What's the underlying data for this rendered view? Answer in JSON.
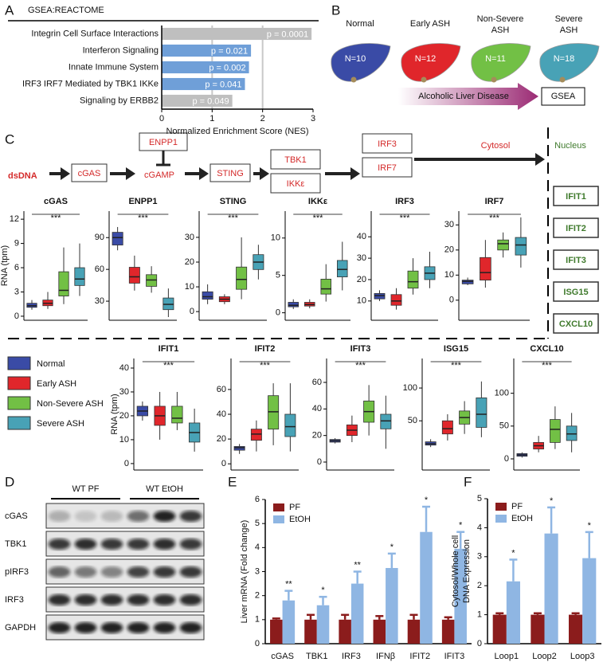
{
  "panel_labels": [
    "A",
    "B",
    "C",
    "D",
    "E",
    "F"
  ],
  "diagram_b": {
    "groups": [
      {
        "label": [
          "Normal"
        ],
        "n": "N=10",
        "color": "#3a4ba6"
      },
      {
        "label": [
          "Early ASH"
        ],
        "n": "N=12",
        "color": "#e0262b"
      },
      {
        "label": [
          "Non-Severe",
          "ASH"
        ],
        "n": "N=11",
        "color": "#72c045"
      },
      {
        "label": [
          "Severe",
          "ASH"
        ],
        "n": "N=18",
        "color": "#48a2b6"
      }
    ],
    "arrow": "Alcoholic Liver Disease",
    "box": "GSEA"
  },
  "pathway": {
    "source": "dsDNA",
    "nodes": [
      "cGAS",
      "cGAMP",
      "STING",
      "TBK1",
      "IKKε",
      "IRF3",
      "IRF7"
    ],
    "inhibitor": "ENPP1",
    "cytosol": "Cytosol",
    "nucleus": "Nucleus",
    "targets": [
      "IFIT1",
      "IFIT2",
      "IFIT3",
      "ISG15",
      "CXCL10"
    ]
  },
  "box_legend": {
    "names": [
      "Normal",
      "Early ASH",
      "Non-Severe ASH",
      "Severe ASH"
    ],
    "colors": [
      "#3a4ba6",
      "#e0262b",
      "#72c045",
      "#48a2b6"
    ]
  },
  "blot": {
    "groups": [
      "WT PF",
      "WT EtOH"
    ],
    "rows": [
      "cGAS",
      "TBK1",
      "pIRF3",
      "IRF3",
      "GAPDH"
    ]
  },
  "chart_data": [
    {
      "type": "hbar",
      "title": "GSEA:REACTOME",
      "categories": [
        "Integrin Cell Surface Interactions",
        "Interferon Signaling",
        "Innate Immune System",
        "IRF3 IRF7 Mediated by TBK1 IKKe",
        "Signaling by ERBB2"
      ],
      "values": [
        2.97,
        1.77,
        1.73,
        1.65,
        1.4
      ],
      "colors": [
        "#bfbfbf",
        "#6f9fd8",
        "#6f9fd8",
        "#6f9fd8",
        "#bfbfbf"
      ],
      "annotations": [
        "p = 0.0001",
        "p = 0.021",
        "p = 0.002",
        "p = 0.041",
        "p = 0.049"
      ],
      "xlim": [
        0,
        3
      ],
      "xticks": [
        0,
        1,
        2,
        3
      ],
      "xlabel": "Normalized Enrichment Score (NES)",
      "grid": true
    },
    {
      "type": "box",
      "title": "cGAS",
      "ylabel": "RNA (tpm)",
      "annotation": "***",
      "ylim": [
        -0.5,
        13
      ],
      "yticks": [
        0,
        3,
        6,
        9,
        12
      ],
      "boxes": [
        {
          "min": 0.8,
          "q1": 1.1,
          "median": 1.3,
          "q3": 1.6,
          "max": 2
        },
        {
          "min": 0.9,
          "q1": 1.3,
          "median": 1.6,
          "q3": 2.0,
          "max": 3
        },
        {
          "min": 1.5,
          "q1": 2.5,
          "median": 3.2,
          "q3": 5.5,
          "max": 8.5
        },
        {
          "min": 2.5,
          "q1": 3.8,
          "median": 4.6,
          "q3": 6,
          "max": 9
        }
      ]
    },
    {
      "type": "box",
      "title": "ENPP1",
      "annotation": "***",
      "ylim": [
        12,
        115
      ],
      "yticks": [
        30,
        60,
        90
      ],
      "boxes": [
        {
          "min": 78,
          "q1": 83,
          "median": 90,
          "q3": 95,
          "max": 100
        },
        {
          "min": 40,
          "q1": 47,
          "median": 53,
          "q3": 62,
          "max": 73
        },
        {
          "min": 38,
          "q1": 44,
          "median": 50,
          "q3": 55,
          "max": 63
        },
        {
          "min": 15,
          "q1": 22,
          "median": 27,
          "q3": 33,
          "max": 42
        }
      ]
    },
    {
      "type": "box",
      "title": "STING",
      "annotation": "***",
      "ylim": [
        -3.5,
        40.6
      ],
      "yticks": [
        0,
        10,
        20,
        30
      ],
      "boxes": [
        {
          "min": 3,
          "q1": 5,
          "median": 6,
          "q3": 8,
          "max": 11
        },
        {
          "min": 3,
          "q1": 4,
          "median": 5,
          "q3": 6,
          "max": 7
        },
        {
          "min": 5,
          "q1": 9,
          "median": 13,
          "q3": 18,
          "max": 30
        },
        {
          "min": 13,
          "q1": 17,
          "median": 20,
          "q3": 23,
          "max": 27
        }
      ]
    },
    {
      "type": "box",
      "title": "IKKε",
      "annotation": "***",
      "ylim": [
        -1,
        13.6
      ],
      "yticks": [
        0,
        5,
        10
      ],
      "boxes": [
        {
          "min": 0.5,
          "q1": 0.8,
          "median": 1,
          "q3": 1.4,
          "max": 1.8
        },
        {
          "min": 0.6,
          "q1": 0.9,
          "median": 1.1,
          "q3": 1.4,
          "max": 1.8
        },
        {
          "min": 1.5,
          "q1": 2.5,
          "median": 3.2,
          "q3": 4.5,
          "max": 6.5
        },
        {
          "min": 3,
          "q1": 4.8,
          "median": 5.8,
          "q3": 7,
          "max": 9.5
        }
      ]
    },
    {
      "type": "box",
      "title": "IRF3",
      "annotation": "***",
      "ylim": [
        1,
        52
      ],
      "yticks": [
        10,
        20,
        30,
        40
      ],
      "boxes": [
        {
          "min": 10,
          "q1": 11,
          "median": 12.5,
          "q3": 13.5,
          "max": 15
        },
        {
          "min": 6,
          "q1": 8,
          "median": 10,
          "q3": 13,
          "max": 16
        },
        {
          "min": 13,
          "q1": 16,
          "median": 19,
          "q3": 24,
          "max": 30
        },
        {
          "min": 16,
          "q1": 20,
          "median": 23,
          "q3": 26,
          "max": 33
        }
      ]
    },
    {
      "type": "box",
      "title": "IRF7",
      "annotation": "***",
      "ylim": [
        -8,
        35.5
      ],
      "yticks": [
        0,
        10,
        20,
        30
      ],
      "boxes": [
        {
          "min": 6,
          "q1": 6.5,
          "median": 7.5,
          "q3": 8,
          "max": 9
        },
        {
          "min": 5,
          "q1": 8,
          "median": 11,
          "q3": 17,
          "max": 24
        },
        {
          "min": 17,
          "q1": 20,
          "median": 22.5,
          "q3": 24,
          "max": 27
        },
        {
          "min": 13,
          "q1": 18,
          "median": 22,
          "q3": 25,
          "max": 33
        }
      ]
    },
    {
      "type": "box",
      "title": "IFIT1",
      "ylabel": "RNA (tpm)",
      "annotation": "***",
      "ylim": [
        -2.7,
        44
      ],
      "yticks": [
        0,
        10,
        20,
        30,
        40
      ],
      "boxes": [
        {
          "min": 18,
          "q1": 20,
          "median": 22,
          "q3": 24,
          "max": 26
        },
        {
          "min": 10,
          "q1": 16,
          "median": 20,
          "q3": 24,
          "max": 30
        },
        {
          "min": 14,
          "q1": 17,
          "median": 19,
          "q3": 24,
          "max": 30
        },
        {
          "min": 5,
          "q1": 9,
          "median": 13,
          "q3": 17,
          "max": 23
        }
      ]
    },
    {
      "type": "box",
      "title": "IFIT2",
      "annotation": "***",
      "ylim": [
        -5,
        85
      ],
      "yticks": [
        0,
        20,
        40,
        60
      ],
      "boxes": [
        {
          "min": 8,
          "q1": 11,
          "median": 13,
          "q3": 14,
          "max": 16
        },
        {
          "min": 10,
          "q1": 19,
          "median": 24,
          "q3": 28,
          "max": 35
        },
        {
          "min": 15,
          "q1": 28,
          "median": 42,
          "q3": 55,
          "max": 65
        },
        {
          "min": 10,
          "q1": 22,
          "median": 30,
          "q3": 40,
          "max": 65
        }
      ]
    },
    {
      "type": "box",
      "title": "IFIT3",
      "annotation": "***",
      "ylim": [
        -6,
        78
      ],
      "yticks": [
        0,
        20,
        40,
        60
      ],
      "boxes": [
        {
          "min": 14,
          "q1": 15,
          "median": 16,
          "q3": 17,
          "max": 18
        },
        {
          "min": 15,
          "q1": 20,
          "median": 24,
          "q3": 28,
          "max": 35
        },
        {
          "min": 20,
          "q1": 30,
          "median": 38,
          "q3": 46,
          "max": 58
        },
        {
          "min": 10,
          "q1": 25,
          "median": 31,
          "q3": 36,
          "max": 50
        }
      ]
    },
    {
      "type": "box",
      "title": "ISG15",
      "annotation": "***",
      "ylim": [
        -25,
        145
      ],
      "yticks": [
        50,
        100
      ],
      "boxes": [
        {
          "min": 10,
          "q1": 13,
          "median": 15,
          "q3": 18,
          "max": 22
        },
        {
          "min": 20,
          "q1": 30,
          "median": 38,
          "q3": 50,
          "max": 60
        },
        {
          "min": 30,
          "q1": 45,
          "median": 55,
          "q3": 65,
          "max": 80
        },
        {
          "min": 25,
          "q1": 40,
          "median": 60,
          "q3": 85,
          "max": 110
        }
      ]
    },
    {
      "type": "box",
      "title": "CXCL10",
      "annotation": "***",
      "ylim": [
        -17,
        153
      ],
      "yticks": [
        0,
        50,
        100
      ],
      "boxes": [
        {
          "min": 2,
          "q1": 4,
          "median": 6,
          "q3": 8,
          "max": 10
        },
        {
          "min": 10,
          "q1": 15,
          "median": 20,
          "q3": 25,
          "max": 35
        },
        {
          "min": 15,
          "q1": 25,
          "median": 45,
          "q3": 60,
          "max": 80
        },
        {
          "min": 10,
          "q1": 28,
          "median": 38,
          "q3": 50,
          "max": 70
        }
      ]
    },
    {
      "type": "grouped_bar",
      "ylabel": [
        "Liver mRNA (Fold change)"
      ],
      "categories": [
        "cGAS",
        "TBK1",
        "IRF3",
        "IFNβ",
        "IFIT2",
        "IFIT3"
      ],
      "series": [
        {
          "name": "PF",
          "color": "#8b1c1c",
          "values": [
            1,
            1,
            1,
            1,
            1,
            1
          ],
          "errors": [
            0.05,
            0.2,
            0.2,
            0.15,
            0.2,
            0.1
          ]
        },
        {
          "name": "EtOH",
          "color": "#8fb6e3",
          "values": [
            1.8,
            1.6,
            2.5,
            3.15,
            4.65,
            3.95
          ],
          "errors": [
            0.4,
            0.35,
            0.5,
            0.6,
            1.05,
            0.7
          ],
          "annotations": [
            "**",
            "*",
            "**",
            "*",
            "*",
            "*"
          ]
        }
      ],
      "ylim": [
        0,
        6
      ],
      "yticks": [
        0,
        1,
        2,
        3,
        4,
        5,
        6
      ],
      "legend": "upper left"
    },
    {
      "type": "grouped_bar",
      "ylabel": [
        "Cytosol/Whole cell",
        "DNA Expression"
      ],
      "categories": [
        "Loop1",
        "Loop2",
        "Loop3"
      ],
      "series": [
        {
          "name": "PF",
          "color": "#8b1c1c",
          "values": [
            1,
            1,
            1
          ],
          "errors": [
            0.05,
            0.05,
            0.05
          ]
        },
        {
          "name": "EtOH",
          "color": "#8fb6e3",
          "values": [
            2.15,
            3.8,
            2.95
          ],
          "errors": [
            0.75,
            0.9,
            0.9
          ],
          "annotations": [
            "*",
            "*",
            "*"
          ]
        }
      ],
      "ylim": [
        0,
        5
      ],
      "yticks": [
        0,
        1,
        2,
        3,
        4,
        5
      ],
      "legend": "upper left"
    }
  ]
}
